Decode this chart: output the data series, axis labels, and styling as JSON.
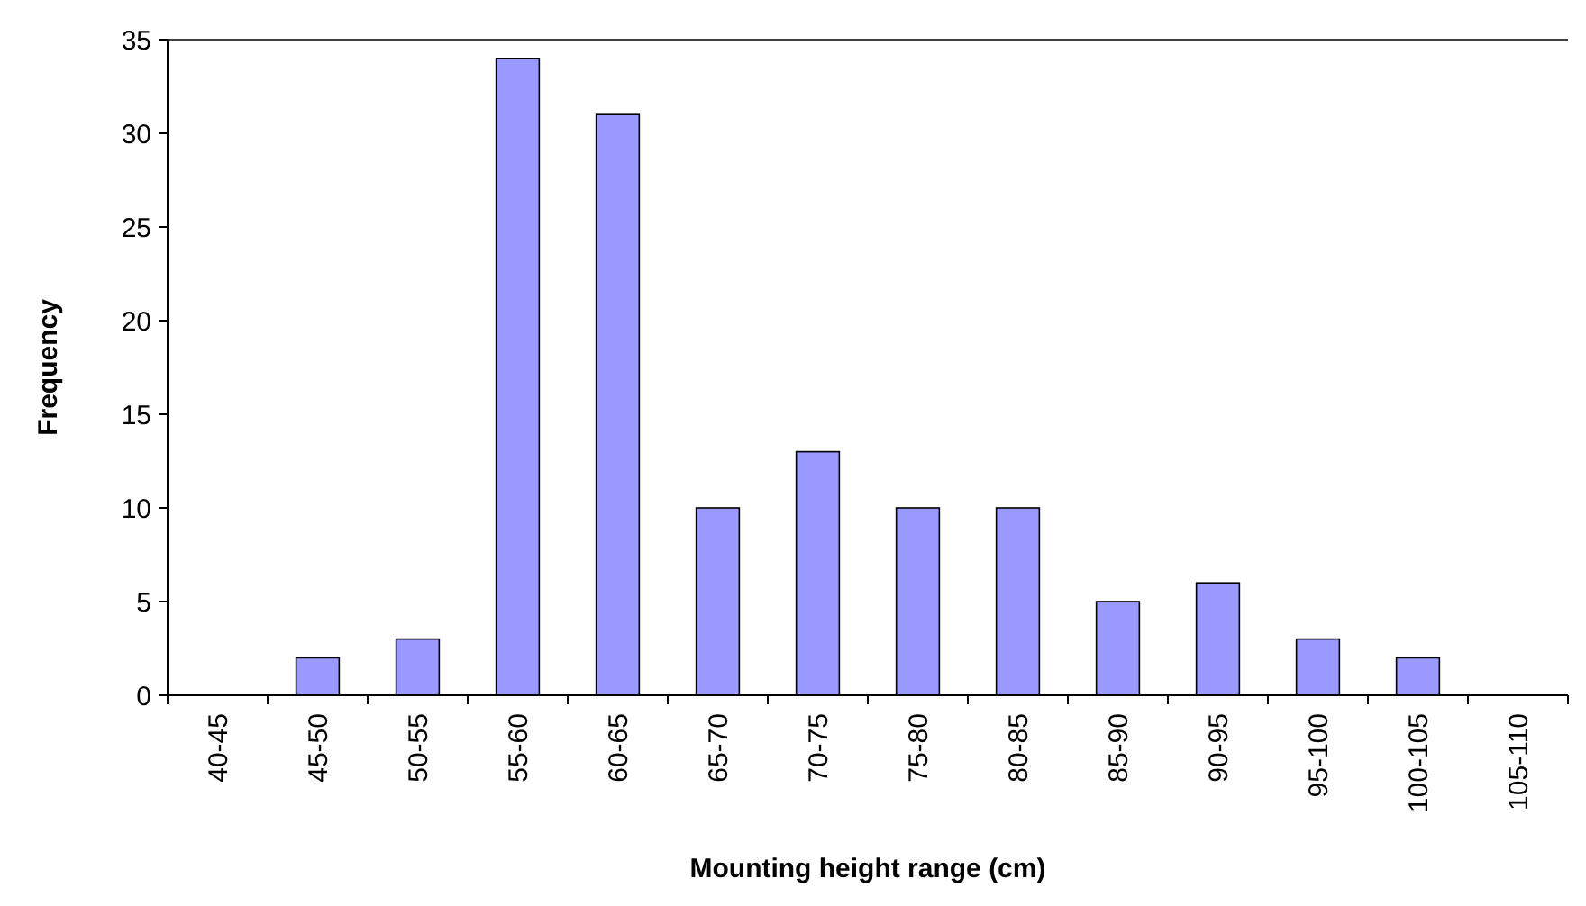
{
  "chart_data": {
    "type": "bar",
    "xlabel": "Mounting height range (cm)",
    "ylabel": "Frequency",
    "categories": [
      "40-45",
      "45-50",
      "50-55",
      "55-60",
      "60-65",
      "65-70",
      "70-75",
      "75-80",
      "80-85",
      "85-90",
      "90-95",
      "95-100",
      "100-105",
      "105-110"
    ],
    "values": [
      0,
      2,
      3,
      34,
      31,
      10,
      13,
      10,
      10,
      5,
      6,
      3,
      2,
      0
    ],
    "color": "#9999ff",
    "ylim": [
      0,
      35
    ],
    "yticks": [
      0,
      5,
      10,
      15,
      20,
      25,
      30,
      35
    ]
  }
}
